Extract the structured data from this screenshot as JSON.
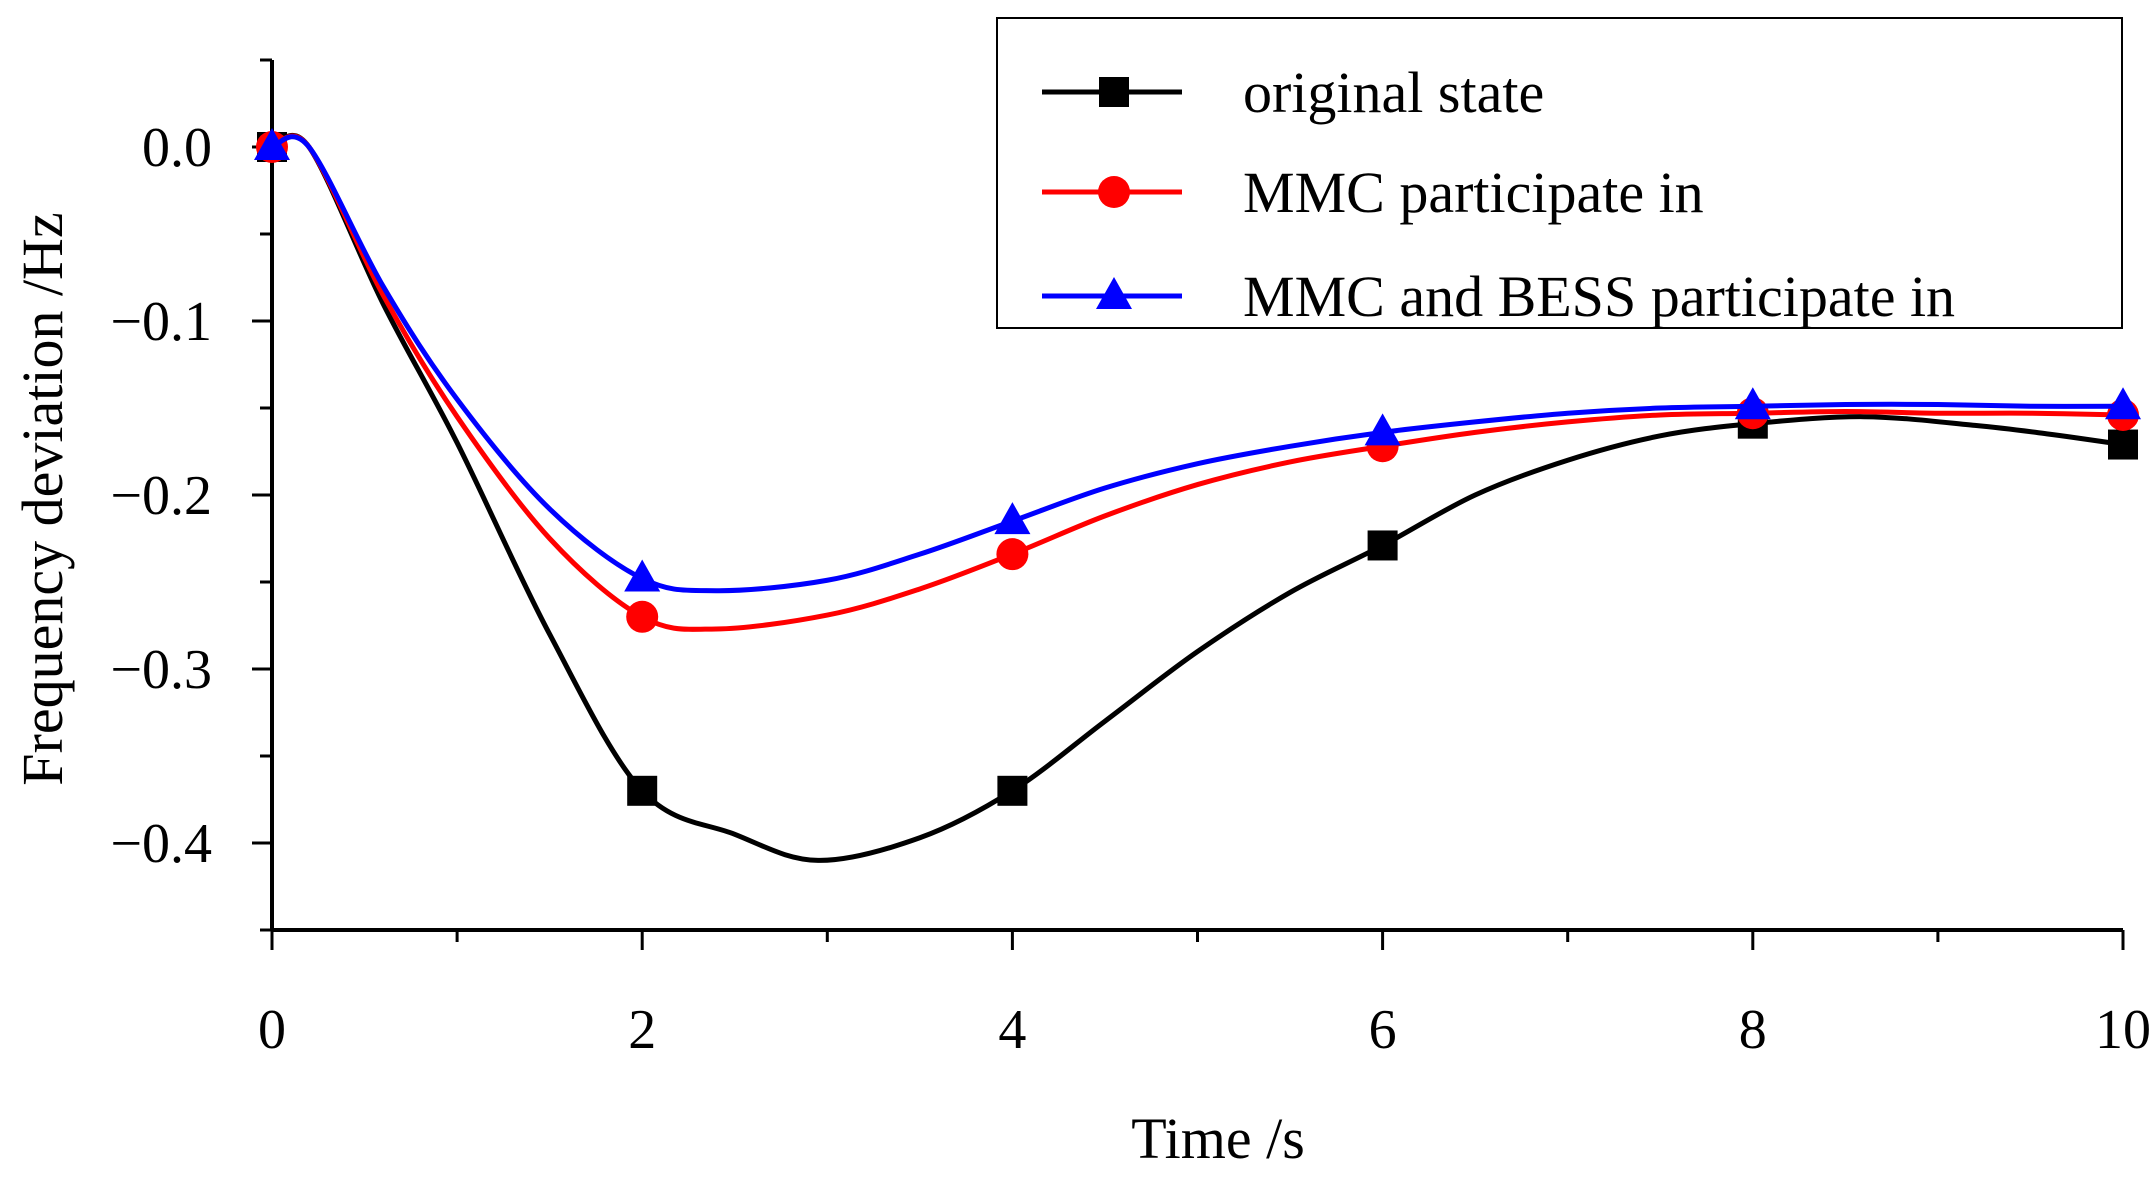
{
  "chart_data": {
    "type": "line",
    "title": "",
    "xlabel": "Time /s",
    "ylabel": "Frequency deviation /Hz",
    "xlim": [
      0,
      10
    ],
    "ylim": [
      -0.45,
      0.05
    ],
    "x_ticks": [
      0,
      2,
      4,
      6,
      8,
      10
    ],
    "x_tick_labels": [
      "0",
      "2",
      "4",
      "6",
      "8",
      "10"
    ],
    "y_ticks": [
      0.0,
      -0.1,
      -0.2,
      -0.3,
      -0.4
    ],
    "y_tick_labels": [
      "0.0",
      "−0.1",
      "−0.2",
      "−0.3",
      "−0.4"
    ],
    "grid": false,
    "legend_position": "top-right",
    "series": [
      {
        "name": "original state",
        "color": "#000000",
        "marker": "square",
        "x": [
          0,
          2,
          4,
          6,
          8,
          10
        ],
        "y": [
          0.0,
          -0.37,
          -0.37,
          -0.229,
          -0.159,
          -0.171
        ],
        "curve_x": [
          0,
          0.2,
          0.6,
          1.0,
          1.5,
          2.0,
          2.5,
          2.95,
          3.5,
          4.0,
          4.5,
          5.0,
          5.5,
          6.0,
          6.5,
          7.0,
          7.5,
          8.0,
          8.6,
          9.2,
          9.6,
          10.0
        ],
        "curve_y": [
          0.0,
          0.0,
          -0.09,
          -0.17,
          -0.28,
          -0.37,
          -0.395,
          -0.41,
          -0.397,
          -0.37,
          -0.33,
          -0.29,
          -0.256,
          -0.229,
          -0.2,
          -0.18,
          -0.166,
          -0.159,
          -0.155,
          -0.16,
          -0.165,
          -0.171
        ]
      },
      {
        "name": "MMC participate in",
        "color": "#ff0000",
        "marker": "circle",
        "x": [
          0,
          2,
          4,
          6,
          8,
          10
        ],
        "y": [
          0.0,
          -0.27,
          -0.234,
          -0.172,
          -0.153,
          -0.154
        ],
        "curve_x": [
          0,
          0.2,
          0.6,
          1.0,
          1.5,
          2.0,
          2.4,
          3.0,
          3.5,
          4.0,
          4.5,
          5.0,
          5.5,
          6.0,
          6.5,
          7.0,
          7.5,
          8.0,
          8.5,
          9.0,
          9.5,
          10.0
        ],
        "curve_y": [
          0.0,
          0.0,
          -0.085,
          -0.155,
          -0.225,
          -0.27,
          -0.277,
          -0.269,
          -0.254,
          -0.234,
          -0.212,
          -0.194,
          -0.181,
          -0.172,
          -0.164,
          -0.158,
          -0.154,
          -0.153,
          -0.152,
          -0.153,
          -0.153,
          -0.154
        ]
      },
      {
        "name": "MMC and BESS participate in",
        "color": "#0000ff",
        "marker": "triangle",
        "x": [
          0,
          2,
          4,
          6,
          8,
          10
        ],
        "y": [
          0.0,
          -0.248,
          -0.215,
          -0.164,
          -0.149,
          -0.149
        ],
        "curve_x": [
          0,
          0.2,
          0.6,
          1.0,
          1.5,
          2.0,
          2.4,
          3.0,
          3.5,
          4.0,
          4.5,
          5.0,
          5.5,
          6.0,
          6.5,
          7.0,
          7.5,
          8.0,
          8.5,
          9.0,
          9.5,
          10.0
        ],
        "curve_y": [
          0.0,
          0.0,
          -0.08,
          -0.145,
          -0.208,
          -0.248,
          -0.255,
          -0.249,
          -0.234,
          -0.215,
          -0.196,
          -0.182,
          -0.172,
          -0.164,
          -0.158,
          -0.153,
          -0.15,
          -0.149,
          -0.148,
          -0.148,
          -0.149,
          -0.149
        ]
      }
    ]
  }
}
